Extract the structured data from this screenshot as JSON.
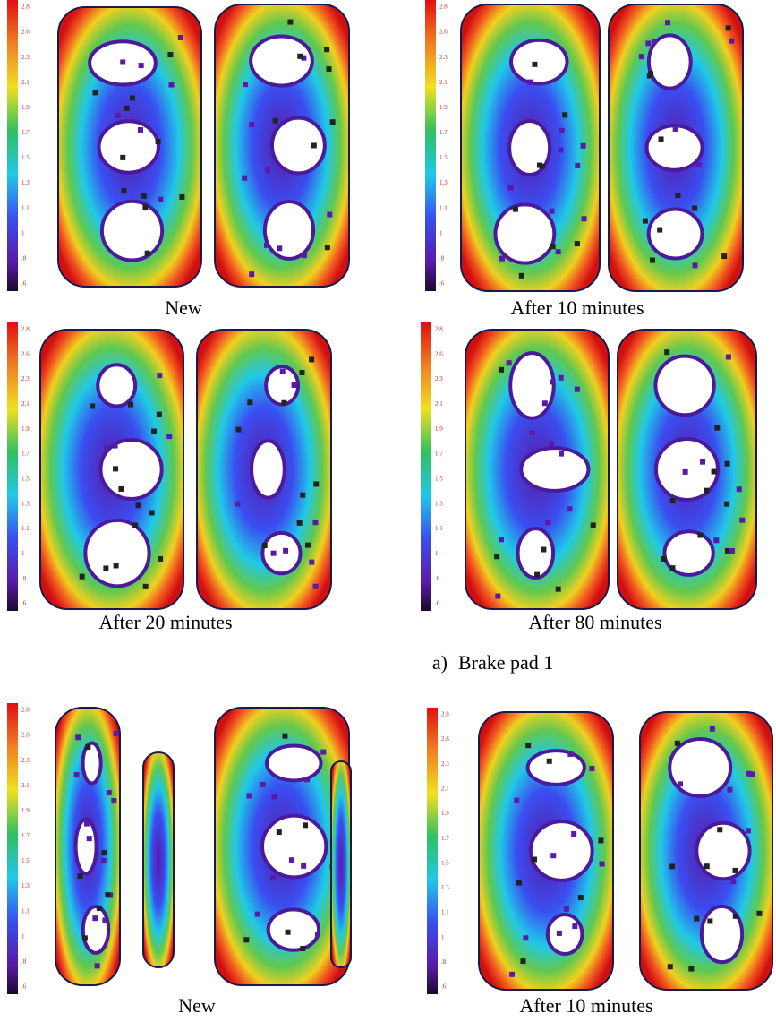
{
  "scale_labels": [
    "2.8",
    "2.6",
    "2.3",
    "2.1",
    "1.9",
    "1.7",
    "1.5",
    "1.3",
    "1.1",
    "1",
    ".8",
    ".6"
  ],
  "panels": [
    {
      "caption": "New"
    },
    {
      "caption": "After 10 minutes"
    },
    {
      "caption": "After 20 minutes"
    },
    {
      "caption": "After 80 minutes"
    },
    {
      "caption": "New"
    },
    {
      "caption": "After 10 minutes"
    }
  ],
  "subcaption": {
    "label": "a)",
    "text": "Brake pad 1"
  }
}
